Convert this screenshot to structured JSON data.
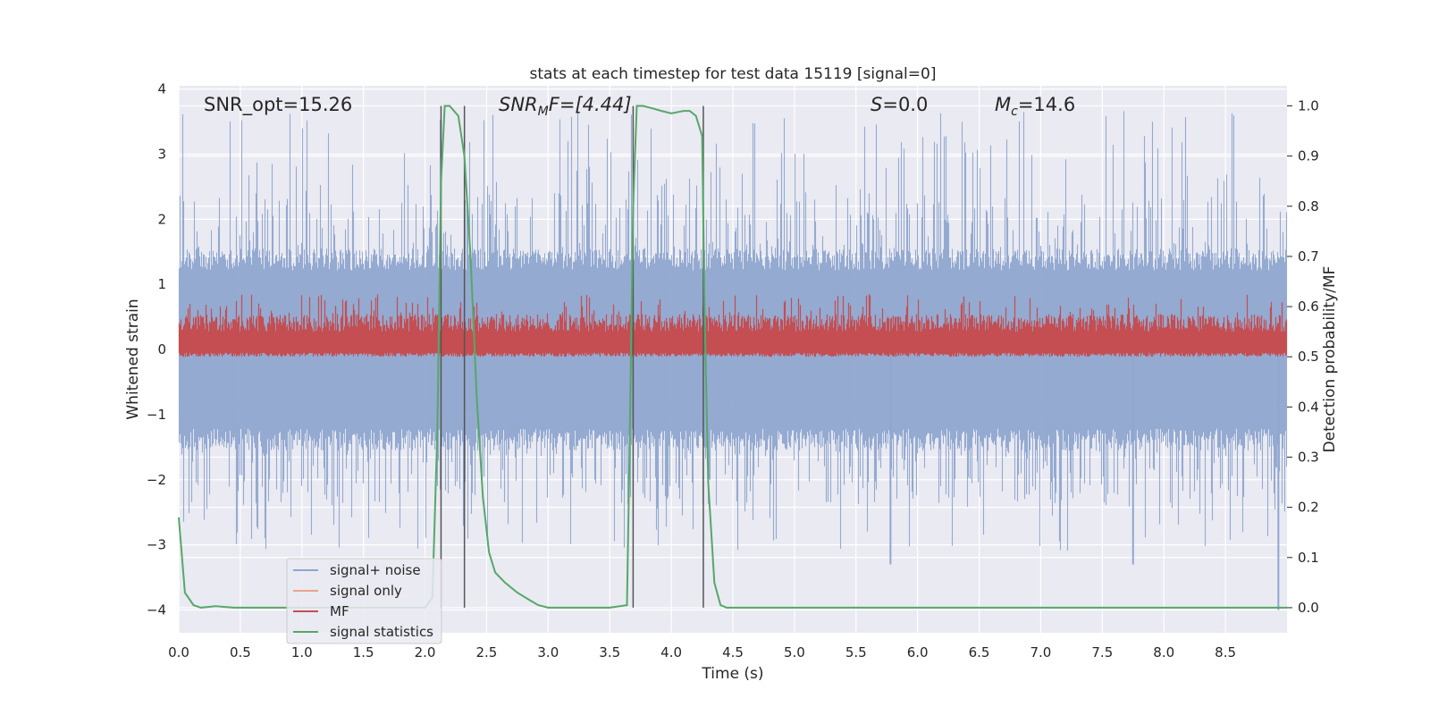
{
  "chart_data": {
    "type": "line",
    "title": "stats at each timestep for test data 15119 [signal=0]",
    "xlabel": "Time (s)",
    "ylabel": "Whitened strain",
    "ylabel_right": "Detection probability/MF",
    "xlim": [
      0,
      9.0
    ],
    "ylim": [
      -4.35,
      4.05
    ],
    "ylim_right": [
      -0.05,
      1.04
    ],
    "x_ticks": [
      0.0,
      0.5,
      1.0,
      1.5,
      2.0,
      2.5,
      3.0,
      3.5,
      4.0,
      4.5,
      5.0,
      5.5,
      6.0,
      6.5,
      7.0,
      7.5,
      8.0,
      8.5
    ],
    "x_tick_labels": [
      "0.0",
      "0.5",
      "1.0",
      "1.5",
      "2.0",
      "2.5",
      "3.0",
      "3.5",
      "4.0",
      "4.5",
      "5.0",
      "5.5",
      "6.0",
      "6.5",
      "7.0",
      "7.5",
      "8.0",
      "8.5"
    ],
    "y_ticks": [
      -4,
      -3,
      -2,
      -1,
      0,
      1,
      2,
      3,
      4
    ],
    "y_tick_labels": [
      "−4",
      "−3",
      "−2",
      "−1",
      "0",
      "1",
      "2",
      "3",
      "4"
    ],
    "y_ticks_right": [
      0.0,
      0.1,
      0.2,
      0.3,
      0.4,
      0.5,
      0.6,
      0.7,
      0.8,
      0.9,
      1.0
    ],
    "y_tick_labels_right": [
      "0.0",
      "0.1",
      "0.2",
      "0.3",
      "0.4",
      "0.5",
      "0.6",
      "0.7",
      "0.8",
      "0.9",
      "1.0"
    ],
    "grid": true,
    "annotations": {
      "snr_opt": "SNR_opt=15.26",
      "snr_mf_base": "SNR",
      "snr_mf_sub": "M",
      "snr_mf_rest": "F=[4.44]",
      "s_italic": "S",
      "s_rest": "=0.0",
      "mc_base": "M",
      "mc_sub": "c",
      "mc_rest": "=14.6"
    },
    "vertical_lines_x": [
      2.13,
      2.32,
      3.69,
      4.26
    ],
    "legend_position": "lower-left",
    "series": [
      {
        "name": "signal+ noise",
        "color": "#8fa6cf",
        "envelope": {
          "typical_abs": 1.35,
          "peak_abs": 3.7,
          "min": -4.0
        }
      },
      {
        "name": "signal only",
        "color": "#e8a58d",
        "values_note": "zero"
      },
      {
        "name": "MF",
        "color": "#c44e52",
        "axis": "right",
        "baseline": 0.5,
        "band": [
          0.5,
          0.6
        ]
      },
      {
        "name": "signal statistics",
        "color": "#55a868",
        "axis": "right",
        "x": [
          0.0,
          0.05,
          0.12,
          0.18,
          0.3,
          0.45,
          0.7,
          1.0,
          1.5,
          2.0,
          2.06,
          2.1,
          2.13,
          2.16,
          2.2,
          2.27,
          2.32,
          2.37,
          2.42,
          2.47,
          2.52,
          2.57,
          2.65,
          2.75,
          2.85,
          2.92,
          3.0,
          3.2,
          3.5,
          3.64,
          3.66,
          3.69,
          3.72,
          3.77,
          3.85,
          3.92,
          4.0,
          4.1,
          4.15,
          4.2,
          4.25,
          4.27,
          4.3,
          4.35,
          4.4,
          4.45,
          5.0,
          6.0,
          7.0,
          8.0,
          9.0
        ],
        "values": [
          0.18,
          0.03,
          0.005,
          0.0,
          0.003,
          0.0,
          0.0,
          0.0,
          0.0,
          0.0,
          0.02,
          0.35,
          0.85,
          1.0,
          1.0,
          0.98,
          0.9,
          0.7,
          0.42,
          0.22,
          0.11,
          0.07,
          0.05,
          0.03,
          0.015,
          0.005,
          0.0,
          0.0,
          0.0,
          0.005,
          0.3,
          0.8,
          1.0,
          1.0,
          0.995,
          0.99,
          0.985,
          0.99,
          0.99,
          0.98,
          0.94,
          0.6,
          0.25,
          0.05,
          0.005,
          0.0,
          0.0,
          0.0,
          0.0,
          0.0,
          0.0
        ]
      }
    ]
  }
}
